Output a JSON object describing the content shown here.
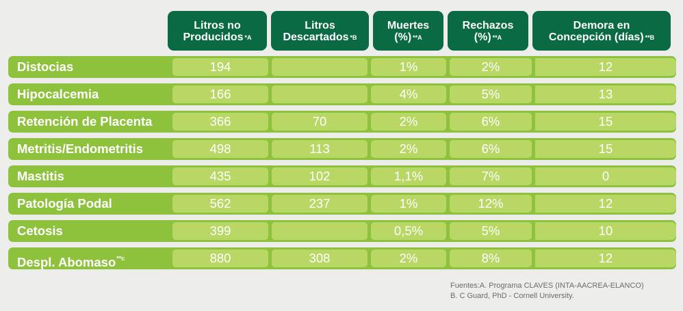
{
  "headers": [
    {
      "label": "Litros no\nProducidos",
      "note": "*A"
    },
    {
      "label": "Litros\nDescartados",
      "note": "*B"
    },
    {
      "label": "Muertes\n(%)",
      "note": "**A"
    },
    {
      "label": "Rechazos\n(%)",
      "note": "**A"
    },
    {
      "label": "Demora en\nConcepción (días)",
      "note": "**B"
    }
  ],
  "rows": [
    {
      "name": "Distocias",
      "note": "",
      "values": [
        "194",
        "",
        "1%",
        "2%",
        "12"
      ]
    },
    {
      "name": "Hipocalcemia",
      "note": "",
      "values": [
        "166",
        "",
        "4%",
        "5%",
        "13"
      ]
    },
    {
      "name": "Retención de Placenta",
      "note": "",
      "values": [
        "366",
        "70",
        "2%",
        "6%",
        "15"
      ]
    },
    {
      "name": "Metritis/Endometritis",
      "note": "",
      "values": [
        "498",
        "113",
        "2%",
        "6%",
        "15"
      ]
    },
    {
      "name": "Mastitis",
      "note": "",
      "values": [
        "435",
        "102",
        "1,1%",
        "7%",
        "0"
      ]
    },
    {
      "name": "Patología Podal",
      "note": "",
      "values": [
        "562",
        "237",
        "1%",
        "12%",
        "12"
      ]
    },
    {
      "name": "Cetosis",
      "note": "",
      "values": [
        "399",
        "",
        "0,5%",
        "5%",
        "10"
      ]
    },
    {
      "name": "Despl. Abomaso",
      "note": "**c",
      "values": [
        "880",
        "308",
        "2%",
        "8%",
        "12"
      ]
    }
  ],
  "sources": {
    "line1": "Fuentes:A. Programa CLAVES (INTA-AACREA-ELANCO)",
    "line2": "B. C Guard, PhD - Cornell University."
  },
  "colors": {
    "header_bg": "#0a6a44",
    "row_bg": "#8fc23c",
    "cell_bg": "#b8d764",
    "page_bg": "#ededec"
  }
}
